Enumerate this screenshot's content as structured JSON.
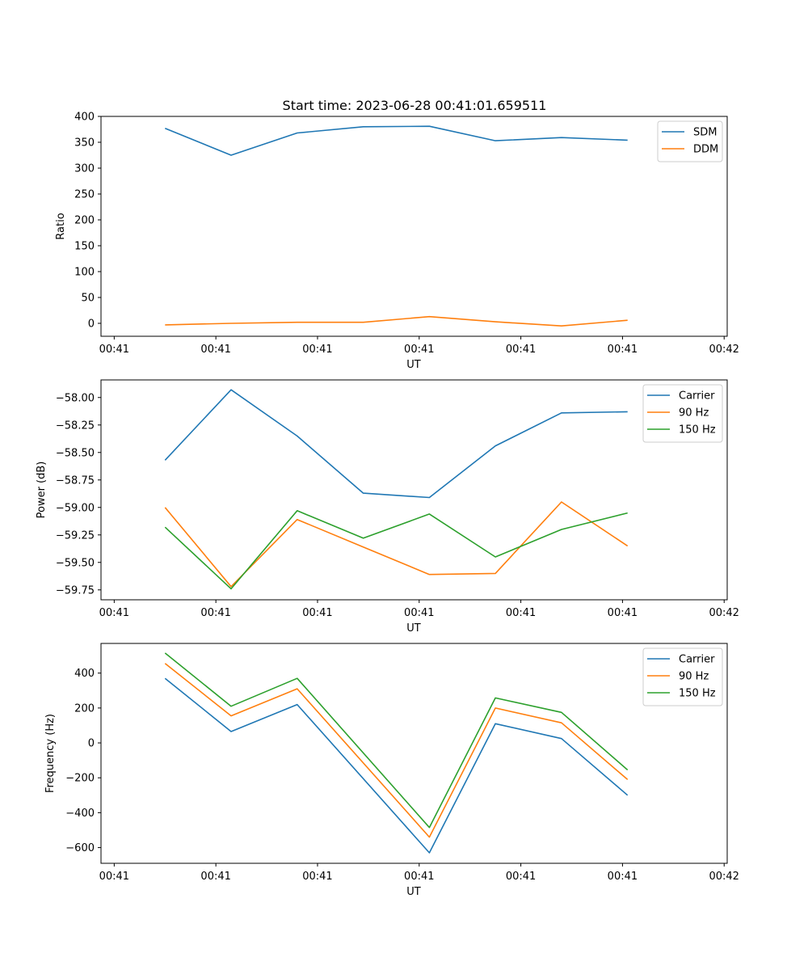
{
  "figure": {
    "title": "Start time: 2023-06-28 00:41:01.659511"
  },
  "chart_data": [
    {
      "type": "line",
      "xlabel": "UT",
      "ylabel": "Ratio",
      "ylim": [
        -25,
        400
      ],
      "yticks": [
        0,
        50,
        100,
        150,
        200,
        250,
        300,
        350,
        400
      ],
      "ytick_labels": [
        "0",
        "50",
        "100",
        "150",
        "200",
        "250",
        "300",
        "350",
        "400"
      ],
      "xticks": [
        0,
        1,
        2,
        3,
        4,
        5,
        6
      ],
      "xtick_labels": [
        "00:41",
        "00:41",
        "00:41",
        "00:41",
        "00:41",
        "00:41",
        "00:42"
      ],
      "xlim": [
        -0.13,
        6.03
      ],
      "x": [
        0.5,
        1.15,
        1.8,
        2.45,
        3.1,
        3.75,
        4.4,
        5.05
      ],
      "series": [
        {
          "name": "SDM",
          "color": "#1f77b4",
          "values": [
            377,
            325,
            368,
            380,
            381,
            353,
            359,
            354
          ]
        },
        {
          "name": "DDM",
          "color": "#ff7f0e",
          "values": [
            -3,
            0,
            2,
            2,
            13,
            3,
            -5,
            6
          ]
        }
      ],
      "legend": "top-right",
      "grid": false
    },
    {
      "type": "line",
      "xlabel": "UT",
      "ylabel": "Power (dB)",
      "ylim": [
        -59.84,
        -57.84
      ],
      "yticks": [
        -59.75,
        -59.5,
        -59.25,
        -59.0,
        -58.75,
        -58.5,
        -58.25,
        -58.0
      ],
      "ytick_labels": [
        "−59.75",
        "−59.50",
        "−59.25",
        "−59.00",
        "−58.75",
        "−58.50",
        "−58.25",
        "−58.00"
      ],
      "xticks": [
        0,
        1,
        2,
        3,
        4,
        5,
        6
      ],
      "xtick_labels": [
        "00:41",
        "00:41",
        "00:41",
        "00:41",
        "00:41",
        "00:41",
        "00:42"
      ],
      "xlim": [
        -0.13,
        6.03
      ],
      "x": [
        0.5,
        1.15,
        1.8,
        2.45,
        3.1,
        3.75,
        4.4,
        5.05
      ],
      "series": [
        {
          "name": "Carrier",
          "color": "#1f77b4",
          "values": [
            -58.57,
            -57.93,
            -58.35,
            -58.87,
            -58.91,
            -58.44,
            -58.14,
            -58.13
          ]
        },
        {
          "name": "90 Hz",
          "color": "#ff7f0e",
          "values": [
            -59.0,
            -59.72,
            -59.11,
            -59.36,
            -59.61,
            -59.6,
            -58.95,
            -59.35
          ]
        },
        {
          "name": "150 Hz",
          "color": "#2ca02c",
          "values": [
            -59.18,
            -59.74,
            -59.03,
            -59.28,
            -59.06,
            -59.45,
            -59.2,
            -59.05
          ]
        }
      ],
      "legend": "top-right",
      "grid": false
    },
    {
      "type": "line",
      "xlabel": "UT",
      "ylabel": "Frequency (Hz)",
      "ylim": [
        -690,
        570
      ],
      "yticks": [
        -600,
        -400,
        -200,
        0,
        200,
        400
      ],
      "ytick_labels": [
        "−600",
        "−400",
        "−200",
        "0",
        "200",
        "400"
      ],
      "xticks": [
        0,
        1,
        2,
        3,
        4,
        5,
        6
      ],
      "xtick_labels": [
        "00:41",
        "00:41",
        "00:41",
        "00:41",
        "00:41",
        "00:41",
        "00:42"
      ],
      "xlim": [
        -0.13,
        6.03
      ],
      "x": [
        0.5,
        1.15,
        1.8,
        3.1,
        3.75,
        4.4,
        5.05
      ],
      "series": [
        {
          "name": "Carrier",
          "color": "#1f77b4",
          "values": [
            370,
            65,
            220,
            -630,
            110,
            25,
            -300
          ]
        },
        {
          "name": "90 Hz",
          "color": "#ff7f0e",
          "values": [
            455,
            155,
            310,
            -540,
            200,
            115,
            -210
          ]
        },
        {
          "name": "150 Hz",
          "color": "#2ca02c",
          "values": [
            515,
            210,
            370,
            -485,
            258,
            175,
            -155
          ]
        }
      ],
      "legend": "top-right",
      "grid": false
    }
  ]
}
